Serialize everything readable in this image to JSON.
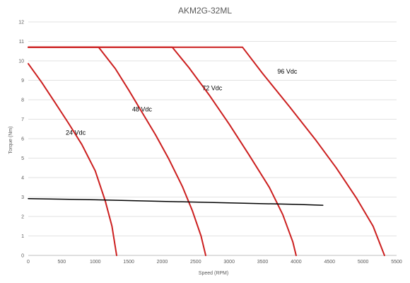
{
  "chart_data": {
    "type": "line",
    "title": "AKM2G-32ML",
    "xlabel": "Speed (RPM)",
    "ylabel": "Torque (Nm)",
    "xlim": [
      0,
      5500
    ],
    "ylim": [
      0,
      12
    ],
    "xticks": [
      0,
      500,
      1000,
      1500,
      2000,
      2500,
      3000,
      3500,
      4000,
      4500,
      5000,
      5500
    ],
    "yticks": [
      0,
      1,
      2,
      3,
      4,
      5,
      6,
      7,
      8,
      9,
      10,
      11,
      12
    ],
    "grid": "horizontal",
    "legend": "none",
    "series": [
      {
        "name": "24 Vdc",
        "color": "#cc1f1f",
        "label_at": [
          560,
          6.2
        ],
        "points": [
          [
            0,
            9.85
          ],
          [
            200,
            8.9
          ],
          [
            400,
            7.85
          ],
          [
            600,
            6.8
          ],
          [
            800,
            5.7
          ],
          [
            1000,
            4.35
          ],
          [
            1150,
            2.8
          ],
          [
            1250,
            1.5
          ],
          [
            1320,
            0
          ]
        ]
      },
      {
        "name": "48 Vdc",
        "color": "#cc1f1f",
        "label_at": [
          1550,
          7.4
        ],
        "points": [
          [
            0,
            10.7
          ],
          [
            1050,
            10.7
          ],
          [
            1300,
            9.6
          ],
          [
            1500,
            8.5
          ],
          [
            1700,
            7.35
          ],
          [
            1900,
            6.2
          ],
          [
            2100,
            4.95
          ],
          [
            2300,
            3.55
          ],
          [
            2450,
            2.3
          ],
          [
            2580,
            1.0
          ],
          [
            2650,
            0
          ]
        ]
      },
      {
        "name": "72 Vdc",
        "color": "#cc1f1f",
        "label_at": [
          2600,
          8.5
        ],
        "points": [
          [
            0,
            10.7
          ],
          [
            2150,
            10.7
          ],
          [
            2400,
            9.65
          ],
          [
            2700,
            8.25
          ],
          [
            3000,
            6.75
          ],
          [
            3300,
            5.15
          ],
          [
            3600,
            3.5
          ],
          [
            3800,
            2.1
          ],
          [
            3950,
            0.7
          ],
          [
            4000,
            0
          ]
        ]
      },
      {
        "name": "96 Vdc",
        "color": "#cc1f1f",
        "label_at": [
          3720,
          9.35
        ],
        "points": [
          [
            0,
            10.7
          ],
          [
            3200,
            10.7
          ],
          [
            3500,
            9.35
          ],
          [
            3900,
            7.65
          ],
          [
            4300,
            5.9
          ],
          [
            4600,
            4.5
          ],
          [
            4900,
            2.95
          ],
          [
            5150,
            1.5
          ],
          [
            5320,
            0
          ]
        ]
      },
      {
        "color": "#000000",
        "points": [
          [
            0,
            2.92
          ],
          [
            1000,
            2.86
          ],
          [
            2000,
            2.78
          ],
          [
            3000,
            2.7
          ],
          [
            4000,
            2.62
          ],
          [
            4400,
            2.58
          ]
        ]
      }
    ]
  }
}
